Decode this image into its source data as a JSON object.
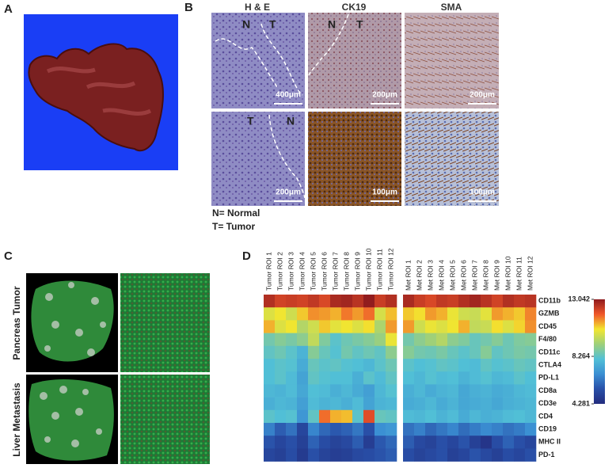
{
  "panel_labels": [
    "A",
    "B",
    "C",
    "D"
  ],
  "panel_b": {
    "columns": [
      "H & E",
      "CK19",
      "SMA"
    ],
    "images": [
      {
        "labels": [
          "N",
          "T"
        ],
        "scale": "400μm"
      },
      {
        "labels": [
          "N",
          "T"
        ],
        "scale": "200μm"
      },
      {
        "scale": "200μm"
      },
      {
        "labels": [
          "T",
          "N"
        ],
        "scale": "200μm"
      },
      {
        "scale": "100μm"
      },
      {
        "scale": "100μm"
      }
    ],
    "legend": [
      "N= Normal",
      "T= Tumor"
    ]
  },
  "panel_c": {
    "rows": [
      "Pancreas Tumor",
      "Liver Metastasis"
    ]
  },
  "chart_data": {
    "type": "heatmap",
    "columns": [
      "Tumor ROI 1",
      "Tumor ROI 2",
      "Tumor ROI 3",
      "Tumor ROI 4",
      "Tumor ROI 5",
      "Tumor ROI 6",
      "Tumor ROI 7",
      "Tumor ROI 8",
      "Tumor ROI 9",
      "Tumor ROI 10",
      "Tumor ROI 11",
      "Tumor ROI 12",
      "Met ROI 1",
      "Met ROI 2",
      "Met ROI 3",
      "Met ROI 4",
      "Met ROI 5",
      "Met ROI 6",
      "Met ROI 7",
      "Met ROI 8",
      "Met ROI 9",
      "Met ROI 10",
      "Met ROI 11",
      "Met ROI 12"
    ],
    "rows": [
      "CD11b",
      "GZMB",
      "CD45",
      "F4/80",
      "CD11c",
      "CTLA4",
      "PD-L1",
      "CD8a",
      "CD3e",
      "CD4",
      "CD19",
      "MHC II",
      "PD-1"
    ],
    "values": [
      [
        12.6,
        12.2,
        12.3,
        12.2,
        12.4,
        12.1,
        12.7,
        12.8,
        12.5,
        13.0,
        12.3,
        12.6,
        12.7,
        12.3,
        12.1,
        12.4,
        12.3,
        12.6,
        12.8,
        12.5,
        12.2,
        12.6,
        12.4,
        12.5
      ],
      [
        10.2,
        10.5,
        10.0,
        10.8,
        11.3,
        11.2,
        11.0,
        11.5,
        11.2,
        11.6,
        10.1,
        10.9,
        10.8,
        10.6,
        11.2,
        11.0,
        10.4,
        10.0,
        9.9,
        10.3,
        11.2,
        11.0,
        10.8,
        11.4
      ],
      [
        11.0,
        10.2,
        10.5,
        9.6,
        10.0,
        10.8,
        10.3,
        10.5,
        10.2,
        10.6,
        9.5,
        11.2,
        11.2,
        10.0,
        10.4,
        10.2,
        10.5,
        11.0,
        9.8,
        9.9,
        10.6,
        10.2,
        10.7,
        11.3
      ],
      [
        8.6,
        8.9,
        8.7,
        9.0,
        9.8,
        8.8,
        8.2,
        8.5,
        8.7,
        8.9,
        9.2,
        10.4,
        8.6,
        9.0,
        9.3,
        9.6,
        9.0,
        8.8,
        8.4,
        8.6,
        8.9,
        8.5,
        8.8,
        8.9
      ],
      [
        8.3,
        8.5,
        8.2,
        7.7,
        8.9,
        8.4,
        8.1,
        8.6,
        8.3,
        8.5,
        8.3,
        9.0,
        8.9,
        8.6,
        8.5,
        8.7,
        8.4,
        8.2,
        8.4,
        8.9,
        8.3,
        8.5,
        8.7,
        8.6
      ],
      [
        8.0,
        8.2,
        8.1,
        7.5,
        8.4,
        8.2,
        8.3,
        8.1,
        8.0,
        7.8,
        8.2,
        8.5,
        8.2,
        8.0,
        8.1,
        8.3,
        8.2,
        8.0,
        7.9,
        8.3,
        8.1,
        8.2,
        8.4,
        8.3
      ],
      [
        8.0,
        8.2,
        7.9,
        7.3,
        8.3,
        8.1,
        8.0,
        8.0,
        7.6,
        8.2,
        7.9,
        8.3,
        8.0,
        7.8,
        8.1,
        7.9,
        8.0,
        7.7,
        7.9,
        8.1,
        7.8,
        7.9,
        8.2,
        8.0
      ],
      [
        7.8,
        7.7,
        7.9,
        7.4,
        8.0,
        7.9,
        7.6,
        7.8,
        7.5,
        7.2,
        7.8,
        8.1,
        7.6,
        7.8,
        7.5,
        7.7,
        7.8,
        7.4,
        7.6,
        7.7,
        7.5,
        7.6,
        7.8,
        7.9
      ],
      [
        7.6,
        7.8,
        7.7,
        7.2,
        7.9,
        7.7,
        7.8,
        7.6,
        7.9,
        7.3,
        7.7,
        7.8,
        7.5,
        7.6,
        7.8,
        7.5,
        7.7,
        7.4,
        7.5,
        7.6,
        7.4,
        7.6,
        7.7,
        7.8
      ],
      [
        8.2,
        8.0,
        8.1,
        7.0,
        8.3,
        11.6,
        11.0,
        10.9,
        8.2,
        12.0,
        8.4,
        8.3,
        7.9,
        7.8,
        8.0,
        7.7,
        7.9,
        7.5,
        7.8,
        7.6,
        7.7,
        7.9,
        8.0,
        7.8
      ],
      [
        6.5,
        5.8,
        6.2,
        5.2,
        6.6,
        6.0,
        5.7,
        5.9,
        6.3,
        5.5,
        6.8,
        7.0,
        6.2,
        6.5,
        6.0,
        6.3,
        6.6,
        6.1,
        6.4,
        6.7,
        6.5,
        6.2,
        6.4,
        6.8
      ],
      [
        5.6,
        5.2,
        5.5,
        5.0,
        5.9,
        5.4,
        5.1,
        5.3,
        5.8,
        4.9,
        5.7,
        6.0,
        5.8,
        5.3,
        5.1,
        5.5,
        5.2,
        5.6,
        5.0,
        4.6,
        5.4,
        5.9,
        5.5,
        5.2
      ],
      [
        5.2,
        5.0,
        5.4,
        4.8,
        5.5,
        5.1,
        4.9,
        5.0,
        5.3,
        5.4,
        5.6,
        5.8,
        5.4,
        5.1,
        5.3,
        5.5,
        5.0,
        5.2,
        5.6,
        5.3,
        5.0,
        5.4,
        5.2,
        5.5
      ]
    ],
    "zlim": [
      4.281,
      13.042
    ],
    "colorbar_ticks": [
      4.281,
      8.264,
      13.042
    ],
    "colormap": [
      "#232c7e",
      "#2950a8",
      "#3b8fd3",
      "#52c0d6",
      "#9ed07a",
      "#f3e62f",
      "#f0572a",
      "#8e1a1e"
    ]
  }
}
